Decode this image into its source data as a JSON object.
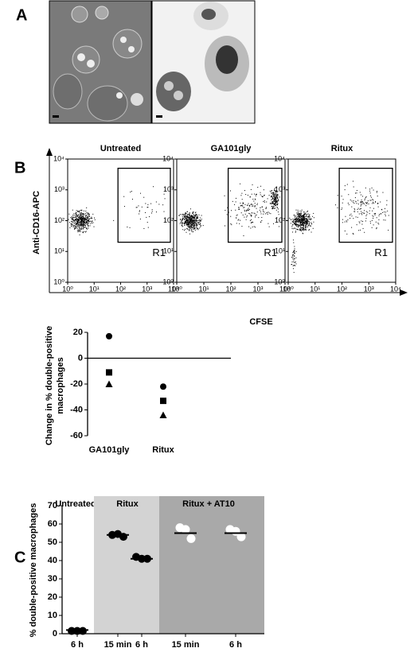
{
  "panel_labels": [
    "A",
    "B",
    "C"
  ],
  "chart_data": [
    {
      "type": "flow",
      "titles": [
        "Untreated",
        "GA101gly",
        "Ritux"
      ],
      "ylabel": "Anti-CD16-APC",
      "xlabel": "CFSE",
      "xlim": [
        0,
        4
      ],
      "ylim": [
        0,
        4
      ],
      "xticks": [
        {
          "value": 0,
          "label": "10⁰"
        },
        {
          "value": 1,
          "label": "10¹"
        },
        {
          "value": 2,
          "label": "10²"
        },
        {
          "value": 3,
          "label": "10³"
        },
        {
          "value": 4,
          "label": "10⁴"
        }
      ],
      "yticks": [
        {
          "value": 0,
          "label": "10⁰"
        },
        {
          "value": 1,
          "label": "10¹"
        },
        {
          "value": 2,
          "label": "10²"
        },
        {
          "value": 3,
          "label": "10³"
        },
        {
          "value": 4,
          "label": "10⁴"
        }
      ],
      "gate": {
        "label": "R1",
        "x": [
          1.9,
          4
        ],
        "y": [
          1.3,
          3.7
        ]
      }
    },
    {
      "type": "scatter",
      "ylabel": [
        "Change in % double-positive",
        "macrophages"
      ],
      "categories": [
        "GA101gly",
        "Ritux"
      ],
      "ylim": [
        -60,
        20
      ],
      "yticks": [
        -60,
        -40,
        -20,
        0,
        20
      ],
      "series": [
        {
          "marker": "circle",
          "color": "#000000",
          "values": [
            17,
            -22
          ]
        },
        {
          "marker": "square",
          "color": "#000000",
          "values": [
            -11,
            -33
          ]
        },
        {
          "marker": "triangle",
          "color": "#000000",
          "values": [
            -20,
            -44
          ]
        }
      ]
    },
    {
      "type": "dot",
      "ylabel": "% double-positive macrophages",
      "groups": [
        "Untreated",
        "Ritux",
        "Ritux + AT10"
      ],
      "group_colors": [
        "#ffffff",
        "#d3d3d3",
        "#a9a9a9"
      ],
      "group_of": [
        0,
        1,
        1,
        2,
        2
      ],
      "categories": [
        "6 h",
        "15 min",
        "6 h",
        "15 min",
        "6 h"
      ],
      "values": [
        [
          1.5,
          1.5,
          1.5
        ],
        [
          54,
          53,
          54.5
        ],
        [
          42,
          41,
          41
        ],
        [
          58,
          52,
          57
        ],
        [
          57,
          53,
          56
        ]
      ],
      "means": [
        2,
        54,
        41,
        55,
        55
      ],
      "filled": [
        true,
        true,
        true,
        false,
        false
      ],
      "ylim": [
        0,
        70
      ],
      "yticks": [
        0,
        10,
        20,
        30,
        40,
        50,
        60,
        70
      ]
    }
  ]
}
